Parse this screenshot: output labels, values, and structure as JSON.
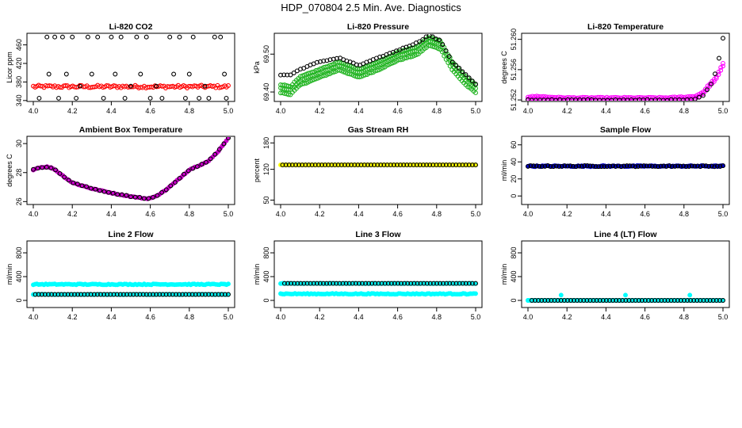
{
  "page": {
    "title": "HDP_070804  2.5 Min. Ave. Diagnostics"
  },
  "chart_data": [
    {
      "type": "scatter",
      "title": "Li-820 CO2",
      "xlabel": "",
      "ylabel": "Licor ppm",
      "xlim": [
        4.0,
        5.0
      ],
      "ylim": [
        338,
        485
      ],
      "xticks": [
        4.0,
        4.2,
        4.4,
        4.6,
        4.8,
        5.0
      ],
      "xtick_labels": [
        "4.0",
        "4.2",
        "4.4",
        "4.6",
        "4.8",
        "5.0"
      ],
      "yticks": [
        340,
        380,
        420,
        460
      ],
      "ytick_labels": [
        "340",
        "380",
        "420",
        "460"
      ],
      "series": [
        {
          "color": "#ff0000",
          "filled": false,
          "pattern": "band",
          "x_range": [
            4.0,
            5.0
          ],
          "y": 370,
          "jitter": 3
        },
        {
          "color": "#000000",
          "filled": false,
          "pattern": "scatter",
          "points": [
            [
              4.03,
              345
            ],
            [
              4.07,
              477
            ],
            [
              4.08,
              397
            ],
            [
              4.11,
              477
            ],
            [
              4.13,
              345
            ],
            [
              4.15,
              477
            ],
            [
              4.17,
              397
            ],
            [
              4.2,
              477
            ],
            [
              4.22,
              345
            ],
            [
              4.24,
              371
            ],
            [
              4.28,
              477
            ],
            [
              4.3,
              397
            ],
            [
              4.33,
              477
            ],
            [
              4.36,
              345
            ],
            [
              4.4,
              477
            ],
            [
              4.42,
              397
            ],
            [
              4.45,
              477
            ],
            [
              4.47,
              345
            ],
            [
              4.5,
              371
            ],
            [
              4.53,
              477
            ],
            [
              4.55,
              397
            ],
            [
              4.58,
              477
            ],
            [
              4.6,
              345
            ],
            [
              4.63,
              371
            ],
            [
              4.66,
              345
            ],
            [
              4.7,
              477
            ],
            [
              4.72,
              397
            ],
            [
              4.75,
              477
            ],
            [
              4.78,
              345
            ],
            [
              4.8,
              397
            ],
            [
              4.82,
              477
            ],
            [
              4.85,
              345
            ],
            [
              4.88,
              371
            ],
            [
              4.9,
              345
            ],
            [
              4.93,
              477
            ],
            [
              4.96,
              477
            ],
            [
              4.98,
              397
            ],
            [
              4.99,
              345
            ]
          ]
        }
      ]
    },
    {
      "type": "scatter",
      "title": "Li-820 Pressure",
      "xlabel": "",
      "ylabel": "kPa",
      "xlim": [
        4.0,
        5.0
      ],
      "ylim": [
        69.375,
        69.555
      ],
      "xticks": [
        4.0,
        4.2,
        4.4,
        4.6,
        4.8,
        5.0
      ],
      "xtick_labels": [
        "4.0",
        "4.2",
        "4.4",
        "4.6",
        "4.8",
        "5.0"
      ],
      "yticks": [
        69.4,
        69.5
      ],
      "ytick_labels": [
        "69.40",
        "69.50"
      ],
      "series": [
        {
          "color": "#1fb31f",
          "filled": false,
          "pattern": "curve",
          "curve": [
            [
              4.0,
              69.41
            ],
            [
              4.05,
              69.405
            ],
            [
              4.1,
              69.43
            ],
            [
              4.15,
              69.44
            ],
            [
              4.2,
              69.45
            ],
            [
              4.3,
              69.47
            ],
            [
              4.4,
              69.45
            ],
            [
              4.5,
              69.47
            ],
            [
              4.6,
              69.495
            ],
            [
              4.7,
              69.51
            ],
            [
              4.76,
              69.535
            ],
            [
              4.82,
              69.525
            ],
            [
              4.88,
              69.47
            ],
            [
              4.95,
              69.43
            ],
            [
              5.0,
              69.41
            ]
          ],
          "offsets": [
            -0.012,
            0,
            0.01
          ],
          "count": 100
        },
        {
          "color": "#000000",
          "filled": false,
          "pattern": "curve",
          "curve": [
            [
              4.0,
              69.445
            ],
            [
              4.05,
              69.445
            ],
            [
              4.1,
              69.46
            ],
            [
              4.2,
              69.48
            ],
            [
              4.3,
              69.49
            ],
            [
              4.4,
              69.47
            ],
            [
              4.5,
              69.49
            ],
            [
              4.6,
              69.51
            ],
            [
              4.7,
              69.53
            ],
            [
              4.76,
              69.55
            ],
            [
              4.82,
              69.535
            ],
            [
              4.88,
              69.48
            ],
            [
              4.95,
              69.445
            ],
            [
              5.0,
              69.42
            ]
          ],
          "offsets": [
            0
          ],
          "count": 60
        }
      ]
    },
    {
      "type": "scatter",
      "title": "Li-820 Temperature",
      "xlabel": "",
      "ylabel": "degrees C",
      "xlim": [
        4.0,
        5.0
      ],
      "ylim": [
        51.2518,
        51.2608
      ],
      "xticks": [
        4.0,
        4.2,
        4.4,
        4.6,
        4.8,
        5.0
      ],
      "xtick_labels": [
        "4.0",
        "4.2",
        "4.4",
        "4.6",
        "4.8",
        "5.0"
      ],
      "yticks": [
        51.252,
        51.256,
        51.26
      ],
      "ytick_labels": [
        "51.252",
        "51.256",
        "51.260"
      ],
      "series": [
        {
          "color": "#ff00ff",
          "filled": false,
          "pattern": "curve",
          "curve": [
            [
              4.0,
              51.2521
            ],
            [
              4.05,
              51.2522
            ],
            [
              4.1,
              51.2521
            ],
            [
              4.2,
              51.252
            ],
            [
              4.5,
              51.252
            ],
            [
              4.7,
              51.252
            ],
            [
              4.8,
              51.2521
            ],
            [
              4.86,
              51.2522
            ],
            [
              4.9,
              51.2528
            ],
            [
              4.93,
              51.2538
            ],
            [
              4.96,
              51.2545
            ],
            [
              4.98,
              51.2555
            ],
            [
              5.0,
              51.2565
            ]
          ],
          "offsets": [
            0,
            0.0003
          ],
          "count": 90
        },
        {
          "color": "#000000",
          "filled": false,
          "pattern": "curve",
          "curve": [
            [
              4.0,
              51.252
            ],
            [
              4.5,
              51.252
            ],
            [
              4.85,
              51.252
            ],
            [
              4.9,
              51.2526
            ],
            [
              4.95,
              51.2545
            ],
            [
              4.98,
              51.2575
            ],
            [
              5.0,
              51.2602
            ]
          ],
          "offsets": [
            0
          ],
          "count": 50
        }
      ]
    },
    {
      "type": "scatter",
      "title": "Ambient Box Temperature",
      "xlabel": "",
      "ylabel": "degrees C",
      "xlim": [
        4.0,
        5.0
      ],
      "ylim": [
        25.8,
        30.5
      ],
      "xticks": [
        4.0,
        4.2,
        4.4,
        4.6,
        4.8,
        5.0
      ],
      "xtick_labels": [
        "4.0",
        "4.2",
        "4.4",
        "4.6",
        "4.8",
        "5.0"
      ],
      "yticks": [
        26,
        28,
        30
      ],
      "ytick_labels": [
        "26",
        "28",
        "30"
      ],
      "series": [
        {
          "color": "#cc00cc",
          "filled": true,
          "pattern": "curve",
          "curve": [
            [
              4.0,
              28.2
            ],
            [
              4.03,
              28.35
            ],
            [
              4.07,
              28.4
            ],
            [
              4.1,
              28.3
            ],
            [
              4.15,
              27.8
            ],
            [
              4.2,
              27.3
            ],
            [
              4.3,
              26.9
            ],
            [
              4.4,
              26.6
            ],
            [
              4.5,
              26.35
            ],
            [
              4.58,
              26.2
            ],
            [
              4.62,
              26.3
            ],
            [
              4.68,
              26.8
            ],
            [
              4.75,
              27.6
            ],
            [
              4.8,
              28.2
            ],
            [
              4.9,
              28.8
            ],
            [
              4.95,
              29.5
            ],
            [
              5.0,
              30.4
            ]
          ],
          "offsets": [
            0
          ],
          "count": 100
        },
        {
          "color": "#000000",
          "filled": false,
          "pattern": "curve",
          "curve": [
            [
              4.0,
              28.2
            ],
            [
              4.03,
              28.35
            ],
            [
              4.07,
              28.4
            ],
            [
              4.1,
              28.3
            ],
            [
              4.15,
              27.8
            ],
            [
              4.2,
              27.3
            ],
            [
              4.3,
              26.9
            ],
            [
              4.4,
              26.6
            ],
            [
              4.5,
              26.35
            ],
            [
              4.58,
              26.2
            ],
            [
              4.62,
              26.3
            ],
            [
              4.68,
              26.8
            ],
            [
              4.75,
              27.6
            ],
            [
              4.8,
              28.2
            ],
            [
              4.9,
              28.8
            ],
            [
              4.95,
              29.5
            ],
            [
              5.0,
              30.4
            ]
          ],
          "offsets": [
            0
          ],
          "count": 45
        }
      ]
    },
    {
      "type": "scatter",
      "title": "Gas Stream RH",
      "xlabel": "",
      "ylabel": "percent",
      "xlim": [
        4.0,
        5.0
      ],
      "ylim": [
        40,
        195
      ],
      "xticks": [
        4.0,
        4.2,
        4.4,
        4.6,
        4.8,
        5.0
      ],
      "xtick_labels": [
        "4.0",
        "4.2",
        "4.4",
        "4.6",
        "4.8",
        "5.0"
      ],
      "yticks": [
        50,
        120,
        180
      ],
      "ytick_labels": [
        "50",
        "120",
        "180"
      ],
      "series": [
        {
          "color": "#ffff00",
          "filled": true,
          "pattern": "band",
          "x_range": [
            4.0,
            5.0
          ],
          "y": 130,
          "jitter": 0
        },
        {
          "color": "#000000",
          "filled": false,
          "pattern": "band",
          "x_range": [
            4.01,
            5.0
          ],
          "y": 130,
          "jitter": 0,
          "count": 60
        }
      ]
    },
    {
      "type": "scatter",
      "title": "Sample Flow",
      "xlabel": "",
      "ylabel": "ml/min",
      "xlim": [
        4.0,
        5.0
      ],
      "ylim": [
        -10,
        70
      ],
      "xticks": [
        4.0,
        4.2,
        4.4,
        4.6,
        4.8,
        5.0
      ],
      "xtick_labels": [
        "4.0",
        "4.2",
        "4.4",
        "4.6",
        "4.8",
        "5.0"
      ],
      "yticks": [
        0,
        20,
        40,
        60
      ],
      "ytick_labels": [
        "0",
        "20",
        "40",
        "60"
      ],
      "series": [
        {
          "color": "#0000cc",
          "filled": true,
          "pattern": "band",
          "x_range": [
            4.0,
            5.0
          ],
          "y": 35,
          "jitter": 0.6
        },
        {
          "color": "#000000",
          "filled": false,
          "pattern": "band",
          "x_range": [
            4.0,
            5.0
          ],
          "y": 35,
          "jitter": 0.6,
          "count": 70
        }
      ]
    },
    {
      "type": "scatter",
      "title": "Line 2 Flow",
      "xlabel": "",
      "ylabel": "ml/min",
      "xlim": [
        4.0,
        5.0
      ],
      "ylim": [
        -120,
        1000
      ],
      "xticks": [
        4.0,
        4.2,
        4.4,
        4.6,
        4.8,
        5.0
      ],
      "xtick_labels": [
        "4.0",
        "4.2",
        "4.4",
        "4.6",
        "4.8",
        "5.0"
      ],
      "yticks": [
        0,
        400,
        800
      ],
      "ytick_labels": [
        "0",
        "400",
        "800"
      ],
      "series": [
        {
          "color": "#00ffff",
          "filled": true,
          "pattern": "band",
          "x_range": [
            4.0,
            5.0
          ],
          "y": 270,
          "jitter": 8
        },
        {
          "color": "#00ffff",
          "filled": true,
          "pattern": "band",
          "x_range": [
            4.0,
            5.0
          ],
          "y": 100,
          "jitter": 4
        },
        {
          "color": "#000000",
          "filled": false,
          "pattern": "band",
          "x_range": [
            4.01,
            5.0
          ],
          "y": 100,
          "jitter": 0,
          "count": 60
        }
      ]
    },
    {
      "type": "scatter",
      "title": "Line 3 Flow",
      "xlabel": "",
      "ylabel": "ml/min",
      "xlim": [
        4.0,
        5.0
      ],
      "ylim": [
        -120,
        1000
      ],
      "xticks": [
        4.0,
        4.2,
        4.4,
        4.6,
        4.8,
        5.0
      ],
      "xtick_labels": [
        "4.0",
        "4.2",
        "4.4",
        "4.6",
        "4.8",
        "5.0"
      ],
      "yticks": [
        0,
        400,
        800
      ],
      "ytick_labels": [
        "0",
        "400",
        "800"
      ],
      "series": [
        {
          "color": "#00ffff",
          "filled": true,
          "pattern": "band",
          "x_range": [
            4.0,
            5.0
          ],
          "y": 110,
          "jitter": 8
        },
        {
          "color": "#00ffff",
          "filled": true,
          "pattern": "band",
          "x_range": [
            4.0,
            5.0
          ],
          "y": 285,
          "jitter": 3
        },
        {
          "color": "#000000",
          "filled": false,
          "pattern": "band",
          "x_range": [
            4.02,
            5.0
          ],
          "y": 285,
          "jitter": 0,
          "count": 60
        }
      ]
    },
    {
      "type": "scatter",
      "title": "Line 4 (LT) Flow",
      "xlabel": "",
      "ylabel": "ml/min",
      "xlim": [
        4.0,
        5.0
      ],
      "ylim": [
        -120,
        1000
      ],
      "xticks": [
        4.0,
        4.2,
        4.4,
        4.6,
        4.8,
        5.0
      ],
      "xtick_labels": [
        "4.0",
        "4.2",
        "4.4",
        "4.6",
        "4.8",
        "5.0"
      ],
      "yticks": [
        0,
        400,
        800
      ],
      "ytick_labels": [
        "0",
        "400",
        "800"
      ],
      "series": [
        {
          "color": "#00ffff",
          "filled": true,
          "pattern": "band",
          "x_range": [
            4.0,
            5.0
          ],
          "y": 0,
          "jitter": 0
        },
        {
          "color": "#00ffff",
          "filled": true,
          "pattern": "scatter",
          "points": [
            [
              4.0,
              0
            ],
            [
              4.17,
              90
            ],
            [
              4.5,
              90
            ],
            [
              4.83,
              90
            ]
          ]
        },
        {
          "color": "#000000",
          "filled": false,
          "pattern": "band",
          "x_range": [
            4.02,
            5.0
          ],
          "y": 0,
          "jitter": 0,
          "count": 60
        }
      ]
    }
  ]
}
